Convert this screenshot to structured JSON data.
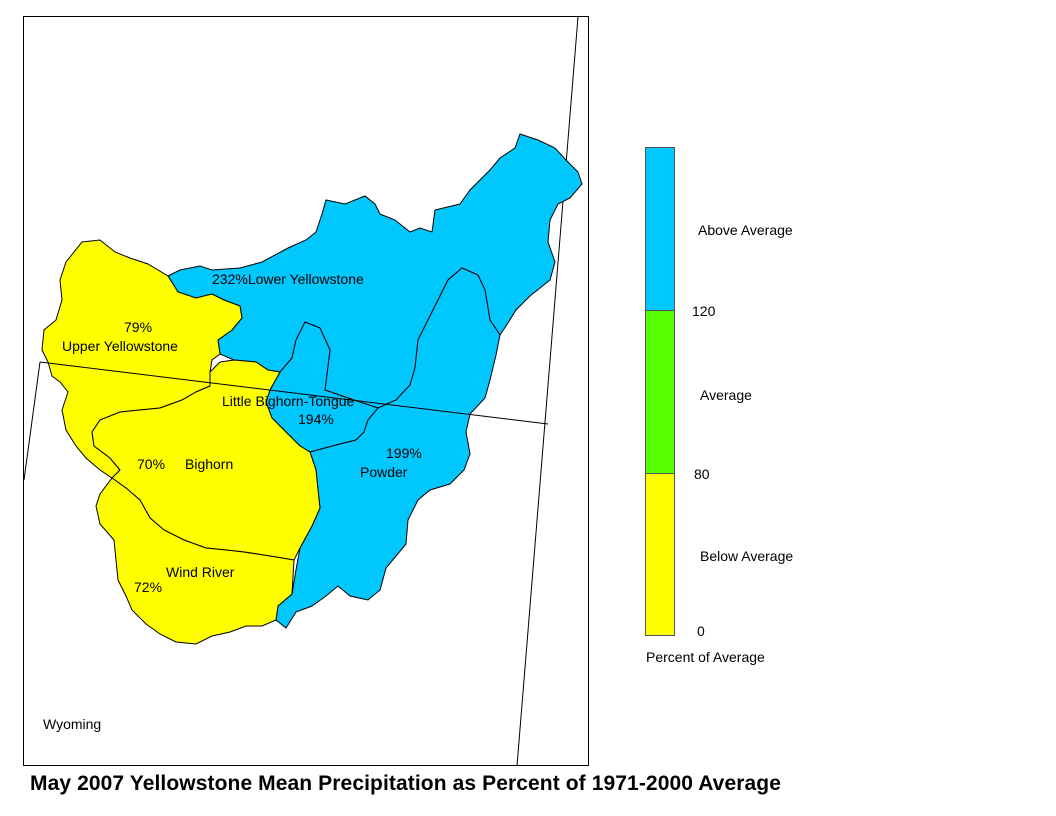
{
  "title": "May 2007 Yellowstone Mean Precipitation as Percent of 1971-2000 Average",
  "state_label": "Wyoming",
  "colors": {
    "above": "#00c8ff",
    "average": "#55ff00",
    "below": "#ffff00",
    "boundary": "#000000"
  },
  "basins": [
    {
      "name": "Lower Yellowstone",
      "percent": "232%",
      "category": "above"
    },
    {
      "name": "Upper Yellowstone",
      "percent": "79%",
      "category": "below"
    },
    {
      "name": "Little Bighorn-Tongue",
      "percent": "194%",
      "category": "above"
    },
    {
      "name": "Powder",
      "percent": "199%",
      "category": "above"
    },
    {
      "name": "Bighorn",
      "percent": "70%",
      "category": "below"
    },
    {
      "name": "Wind River",
      "percent": "72%",
      "category": "below"
    }
  ],
  "legend": {
    "title": "Percent of Average",
    "classes": [
      {
        "label": "Above Average",
        "category": "above"
      },
      {
        "label": "Average",
        "category": "average"
      },
      {
        "label": "Below Average",
        "category": "below"
      }
    ],
    "breaks": [
      "120",
      "80",
      "0"
    ]
  }
}
